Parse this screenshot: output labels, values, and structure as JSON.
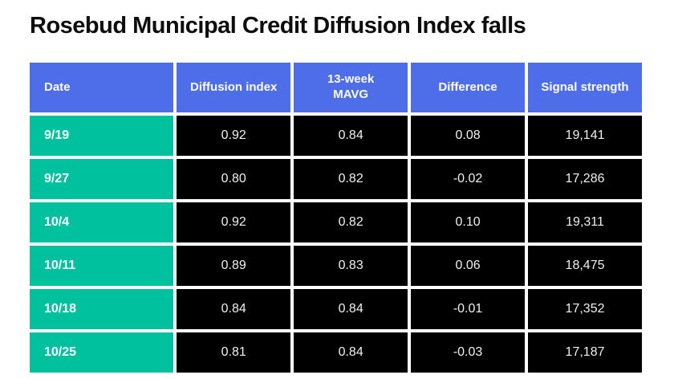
{
  "title": "Rosebud Municipal Credit Diffusion Index falls",
  "colors": {
    "page-bg": "#ffffff",
    "header-bg": "#4d6de9",
    "date-bg": "#00c19d",
    "cell-bg": "#000000",
    "cell-text": "#f0f0f0",
    "header-text": "#ffffff",
    "title-text": "#0d0d0d"
  },
  "table": {
    "columns": [
      "Date",
      "Diffusion index",
      "13-week\nMAVG",
      "Difference",
      "Signal strength"
    ],
    "rows": [
      [
        "9/19",
        "0.92",
        "0.84",
        "0.08",
        "19,141"
      ],
      [
        "9/27",
        "0.80",
        "0.82",
        "-0.02",
        "17,286"
      ],
      [
        "10/4",
        "0.92",
        "0.82",
        "0.10",
        "19,311"
      ],
      [
        "10/11",
        "0.89",
        "0.83",
        "0.06",
        "18,475"
      ],
      [
        "10/18",
        "0.84",
        "0.84",
        "-0.01",
        "17,352"
      ],
      [
        "10/25",
        "0.81",
        "0.84",
        "-0.03",
        "17,187"
      ]
    ]
  },
  "chart_data": {
    "type": "table",
    "title": "Rosebud Municipal Credit Diffusion Index falls",
    "columns": [
      "Date",
      "Diffusion index",
      "13-week MAVG",
      "Difference",
      "Signal strength"
    ],
    "dates": [
      "9/19",
      "9/27",
      "10/4",
      "10/11",
      "10/18",
      "10/25"
    ],
    "diffusion_index": [
      0.92,
      0.8,
      0.92,
      0.89,
      0.84,
      0.81
    ],
    "mavg_13_week": [
      0.84,
      0.82,
      0.82,
      0.83,
      0.84,
      0.84
    ],
    "difference": [
      0.08,
      -0.02,
      0.1,
      0.06,
      -0.01,
      -0.03
    ],
    "signal_strength": [
      19141,
      17286,
      19311,
      18475,
      17352,
      17187
    ]
  }
}
